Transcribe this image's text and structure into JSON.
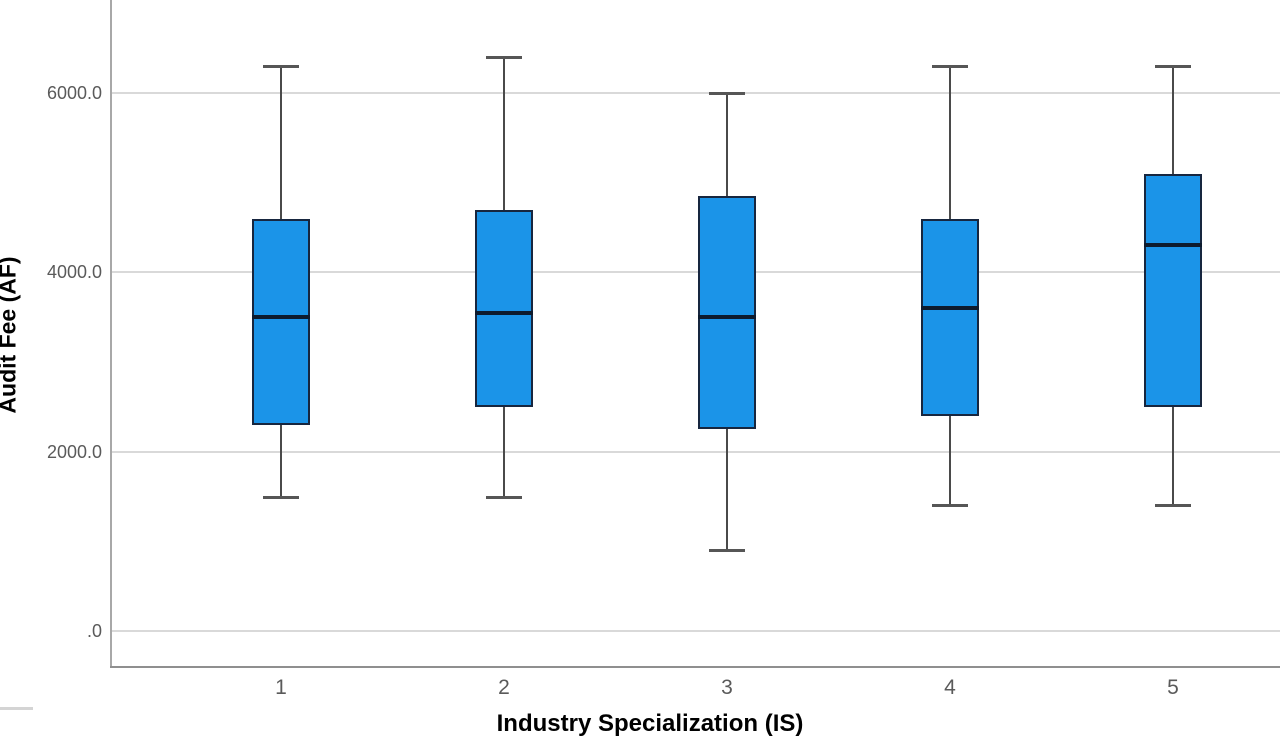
{
  "chart_data": {
    "type": "boxplot",
    "title": "",
    "xlabel": "Industry Specialization (IS)",
    "ylabel": "Audit Fee (AF)",
    "categories": [
      "1",
      "2",
      "3",
      "4",
      "5"
    ],
    "series": [
      {
        "category": "1",
        "min": 1500,
        "q1": 2300,
        "median": 3500,
        "q3": 4600,
        "max": 6300
      },
      {
        "category": "2",
        "min": 1500,
        "q1": 2500,
        "median": 3550,
        "q3": 4700,
        "max": 6400
      },
      {
        "category": "3",
        "min": 900,
        "q1": 2250,
        "median": 3500,
        "q3": 4850,
        "max": 6000
      },
      {
        "category": "4",
        "min": 1400,
        "q1": 2400,
        "median": 3600,
        "q3": 4600,
        "max": 6300
      },
      {
        "category": "5",
        "min": 1400,
        "q1": 2500,
        "median": 4300,
        "q3": 5100,
        "max": 6300
      }
    ],
    "y_ticks": [
      {
        "label": "6000.0",
        "value": 6000
      },
      {
        "label": "4000.0",
        "value": 4000
      },
      {
        "label": "2000.0",
        "value": 2000
      },
      {
        "label": ".0",
        "value": 0
      }
    ],
    "ylim": [
      -400,
      7040
    ],
    "grid": true,
    "legend": "none",
    "colors": {
      "box_fill": "#1b94e8",
      "box_border": "#17263f",
      "median": "#0d1b2e",
      "whisker": "#4a4a4a",
      "gridline": "#d9d9d9",
      "axis": "#8f8f8f",
      "tick_label": "#5a5a5a",
      "axis_title": "#000000"
    }
  }
}
